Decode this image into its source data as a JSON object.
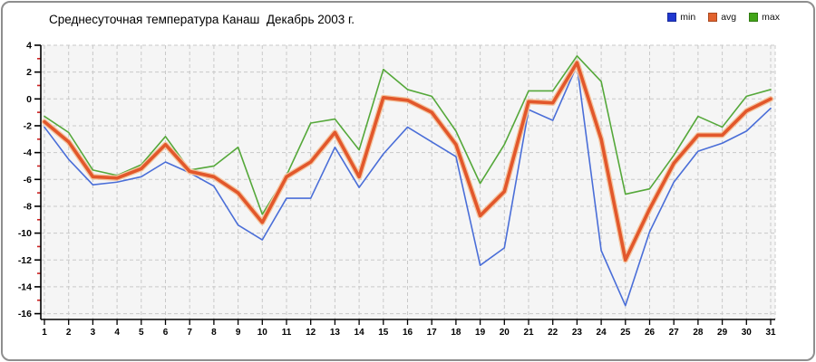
{
  "title": "Среднесуточная температура Канаш  Декабрь 2003 г.",
  "legend": [
    {
      "label": "min",
      "color": "#2038d0"
    },
    {
      "label": "avg",
      "color": "#e2622d"
    },
    {
      "label": "max",
      "color": "#42a519"
    }
  ],
  "chart_data": {
    "type": "line",
    "title": "Среднесуточная температура Канаш  Декабрь 2003 г.",
    "xlabel": "",
    "ylabel": "",
    "x": [
      1,
      2,
      3,
      4,
      5,
      6,
      7,
      8,
      9,
      10,
      11,
      12,
      13,
      14,
      15,
      16,
      17,
      18,
      19,
      20,
      21,
      22,
      23,
      24,
      25,
      26,
      27,
      28,
      29,
      30,
      31
    ],
    "ylim": [
      -16,
      4
    ],
    "y_ticks": [
      4,
      2,
      0,
      -2,
      -4,
      -6,
      -8,
      -10,
      -12,
      -14,
      -16
    ],
    "grid": true,
    "legend_position": "top-right",
    "series": [
      {
        "name": "min",
        "color": "#4a6ed8",
        "values": [
          -2.1,
          -4.5,
          -6.4,
          -6.2,
          -5.8,
          -4.7,
          -5.5,
          -6.5,
          -9.4,
          -10.5,
          -7.4,
          -7.4,
          -3.6,
          -6.6,
          -4.1,
          -2.1,
          -3.2,
          -4.3,
          -12.4,
          -11.1,
          -0.8,
          -1.6,
          2.5,
          -11.3,
          -15.4,
          -9.9,
          -6.2,
          -3.9,
          -3.3,
          -2.4,
          -0.7
        ]
      },
      {
        "name": "avg",
        "color": "#e2572b",
        "values": [
          -1.7,
          -3.2,
          -5.8,
          -5.9,
          -5.2,
          -3.4,
          -5.4,
          -5.8,
          -7.0,
          -9.2,
          -5.8,
          -4.7,
          -2.5,
          -5.8,
          0.1,
          -0.1,
          -1.0,
          -3.4,
          -8.7,
          -6.9,
          -0.2,
          -0.3,
          2.7,
          -3.0,
          -12.0,
          -8.2,
          -4.8,
          -2.7,
          -2.7,
          -0.9,
          0.0
        ]
      },
      {
        "name": "max",
        "color": "#55a83a",
        "values": [
          -1.3,
          -2.5,
          -5.3,
          -5.7,
          -4.9,
          -2.8,
          -5.3,
          -5.0,
          -3.6,
          -8.6,
          -5.7,
          -1.8,
          -1.5,
          -3.8,
          2.2,
          0.7,
          0.2,
          -2.4,
          -6.3,
          -3.4,
          0.6,
          0.6,
          3.2,
          1.3,
          -7.1,
          -6.7,
          -4.2,
          -1.3,
          -2.1,
          0.2,
          0.7
        ]
      }
    ]
  }
}
